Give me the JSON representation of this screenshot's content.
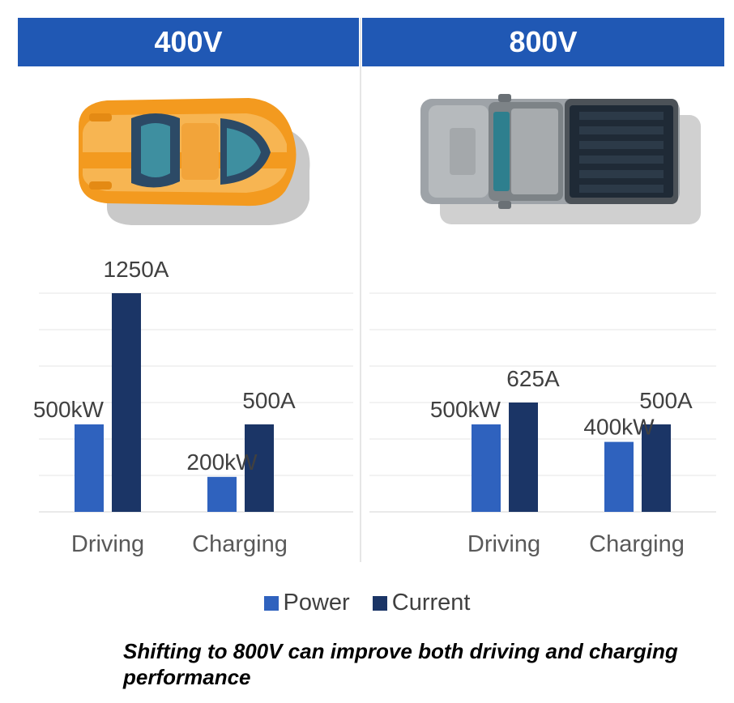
{
  "caption": "Shifting to 800V can improve both driving and charging performance",
  "colors": {
    "header": "#2058b4",
    "power": "#2f62be",
    "current": "#1b3566"
  },
  "panels": [
    {
      "title": "400V",
      "vehicle_icon": "sports-car-icon"
    },
    {
      "title": "800V",
      "vehicle_icon": "pickup-truck-icon"
    }
  ],
  "legend": [
    {
      "name": "Power",
      "color": "#2f62be"
    },
    {
      "name": "Current",
      "color": "#1b3566"
    }
  ],
  "chart_data": [
    {
      "type": "bar",
      "panel": "400V",
      "categories": [
        "Driving",
        "Charging"
      ],
      "series": [
        {
          "name": "Power",
          "values": [
            500,
            200
          ],
          "labels": [
            "500kW",
            "200kW"
          ]
        },
        {
          "name": "Current",
          "values": [
            1250,
            500
          ],
          "labels": [
            "1250A",
            "500A"
          ]
        }
      ],
      "ylim": [
        0,
        1250
      ],
      "grid": true,
      "legend_position": "bottom"
    },
    {
      "type": "bar",
      "panel": "800V",
      "categories": [
        "Driving",
        "Charging"
      ],
      "series": [
        {
          "name": "Power",
          "values": [
            500,
            400
          ],
          "labels": [
            "500kW",
            "400kW"
          ]
        },
        {
          "name": "Current",
          "values": [
            625,
            500
          ],
          "labels": [
            "625A",
            "500A"
          ]
        }
      ],
      "ylim": [
        0,
        1250
      ],
      "grid": true,
      "legend_position": "bottom"
    }
  ]
}
